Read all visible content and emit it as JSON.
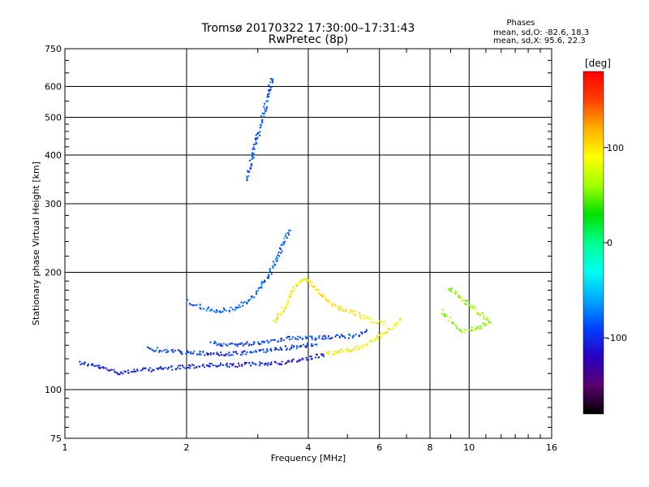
{
  "header": {
    "title_line1": "Tromsø 20170322 17:30:00–17:31:43",
    "title_line2": "RwPretec (8p)",
    "phases_title": "Phases",
    "phases_o": "mean, sd,O: -82.6, 18.3",
    "phases_x": "mean, sd,X:  95.6, 22.3"
  },
  "colorbar": {
    "unit": "[deg]",
    "ticks": [
      {
        "value": 100,
        "label": "100"
      },
      {
        "value": 0,
        "label": "0"
      },
      {
        "value": -100,
        "label": "-100"
      }
    ],
    "range": [
      -180,
      180
    ],
    "stops": [
      "#000000",
      "#5a0070",
      "#2a00c0",
      "#0040ff",
      "#00a8ff",
      "#00ffee",
      "#00ff90",
      "#00e000",
      "#a0ff00",
      "#ffff00",
      "#ffb000",
      "#ff4000",
      "#ff0000"
    ]
  },
  "chart_data": {
    "type": "scatter",
    "title": "Tromsø 20170322 17:30:00–17:31:43",
    "subtitle": "RwPretec (8p)",
    "xlabel": "Frequency [MHz]",
    "ylabel": "Stationary phase Virtual Height [km]",
    "x_scale": "log",
    "y_scale": "log",
    "xlim": [
      1,
      16
    ],
    "ylim": [
      75,
      750
    ],
    "x_major_ticks": [
      1,
      2,
      4,
      6,
      8,
      10,
      16
    ],
    "x_major_tick_labels": [
      "1",
      "2",
      "4",
      "6",
      "8",
      "10",
      "16"
    ],
    "x_grid": [
      2,
      4,
      6,
      8,
      10
    ],
    "x_minor_ticks": [
      3,
      5,
      7,
      9,
      11,
      12,
      13,
      14,
      15
    ],
    "y_major_ticks": [
      75,
      100,
      200,
      300,
      400,
      500,
      600,
      750
    ],
    "y_major_tick_labels": [
      "75",
      "100",
      "200",
      "300",
      "400",
      "500",
      "600",
      "750"
    ],
    "y_grid": [
      100,
      200,
      300,
      400,
      500,
      600
    ],
    "grid": true,
    "color_dimension": "phase [deg]",
    "traces": [
      {
        "desc": "O-mode low trace",
        "phase": -105,
        "points": [
          [
            1.08,
            118
          ],
          [
            1.2,
            115
          ],
          [
            1.35,
            111
          ],
          [
            1.45,
            112
          ],
          [
            1.6,
            113
          ],
          [
            1.8,
            114
          ],
          [
            2.0,
            115
          ],
          [
            2.3,
            116
          ],
          [
            2.6,
            116
          ],
          [
            3.0,
            117
          ],
          [
            3.5,
            118
          ],
          [
            4.0,
            121
          ],
          [
            4.4,
            124
          ]
        ]
      },
      {
        "desc": "O-mode second trace",
        "phase": -95,
        "points": [
          [
            1.6,
            128
          ],
          [
            1.8,
            126
          ],
          [
            2.0,
            125
          ],
          [
            2.3,
            124
          ],
          [
            2.6,
            124
          ],
          [
            3.0,
            126
          ],
          [
            3.4,
            128
          ],
          [
            3.8,
            130
          ],
          [
            4.2,
            131
          ]
        ]
      },
      {
        "desc": "O-mode third trace",
        "phase": -90,
        "points": [
          [
            2.3,
            132
          ],
          [
            2.6,
            131
          ],
          [
            2.9,
            132
          ],
          [
            3.2,
            134
          ],
          [
            3.5,
            136
          ],
          [
            4.0,
            136
          ],
          [
            4.6,
            137
          ],
          [
            5.2,
            138
          ],
          [
            5.6,
            142
          ]
        ]
      },
      {
        "desc": "O-mode F-region cusp",
        "phase": -80,
        "points": [
          [
            2.0,
            170
          ],
          [
            2.2,
            162
          ],
          [
            2.4,
            160
          ],
          [
            2.6,
            162
          ],
          [
            2.8,
            168
          ],
          [
            3.0,
            180
          ],
          [
            3.2,
            200
          ],
          [
            3.4,
            230
          ],
          [
            3.6,
            260
          ]
        ]
      },
      {
        "desc": "O-mode high trace",
        "phase": -85,
        "points": [
          [
            2.8,
            350
          ],
          [
            2.9,
            400
          ],
          [
            3.0,
            460
          ],
          [
            3.1,
            520
          ],
          [
            3.2,
            600
          ],
          [
            3.25,
            640
          ]
        ]
      },
      {
        "desc": "X-mode trace",
        "phase": 95,
        "points": [
          [
            3.3,
            150
          ],
          [
            3.5,
            165
          ],
          [
            3.7,
            185
          ],
          [
            3.9,
            195
          ],
          [
            4.2,
            180
          ],
          [
            4.6,
            165
          ],
          [
            5.0,
            160
          ],
          [
            5.4,
            155
          ],
          [
            5.8,
            150
          ],
          [
            6.2,
            148
          ]
        ]
      },
      {
        "desc": "X-mode lower trace",
        "phase": 90,
        "points": [
          [
            4.4,
            124
          ],
          [
            4.8,
            126
          ],
          [
            5.2,
            128
          ],
          [
            5.6,
            132
          ],
          [
            6.0,
            138
          ],
          [
            6.4,
            145
          ],
          [
            6.8,
            155
          ]
        ]
      },
      {
        "desc": "Far scatter",
        "phase": 60,
        "points": [
          [
            8.5,
            160
          ],
          [
            9.0,
            150
          ],
          [
            9.5,
            142
          ],
          [
            10.5,
            145
          ],
          [
            11.2,
            150
          ],
          [
            8.8,
            185
          ]
        ]
      }
    ]
  }
}
